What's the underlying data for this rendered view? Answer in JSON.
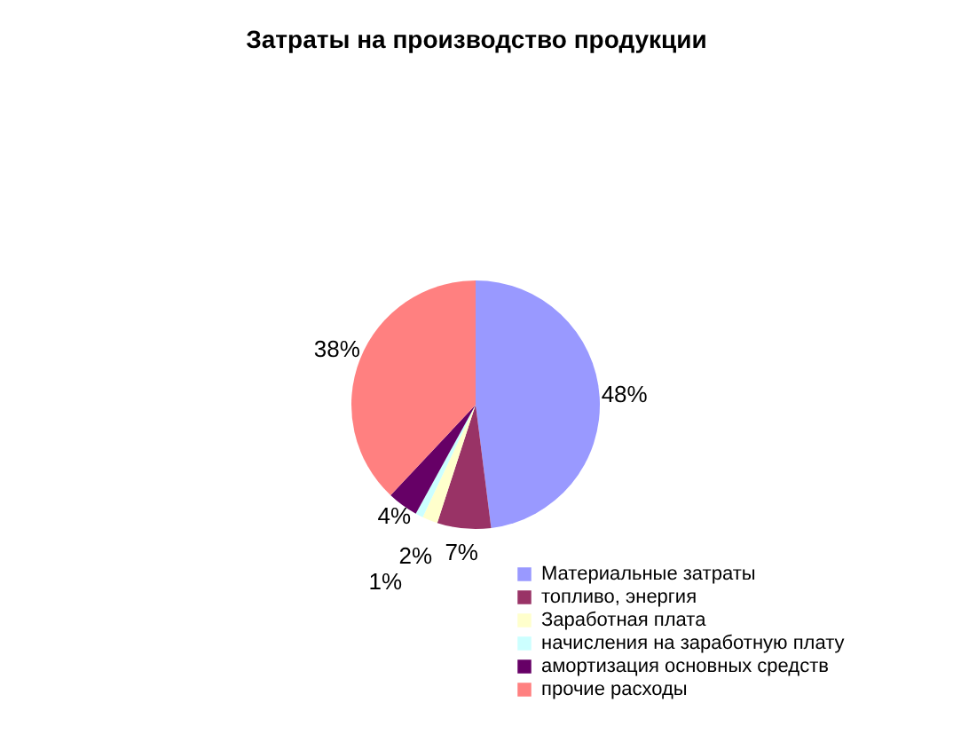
{
  "chart_data": {
    "type": "pie",
    "title": "Затраты на производство продукции",
    "categories": [
      "Материальные затраты",
      "топливо, энергия",
      "Заработная плата",
      "начисления на заработную плату",
      "амортизация основных средств",
      "прочие расходы"
    ],
    "values": [
      48,
      7,
      2,
      1,
      4,
      38
    ],
    "value_labels": [
      "48%",
      "7%",
      "2%",
      "1%",
      "4%",
      "38%"
    ],
    "colors": [
      "#9999ff",
      "#993366",
      "#ffffcc",
      "#ccffff",
      "#660066",
      "#ff8080"
    ],
    "legend": "bottom right"
  }
}
